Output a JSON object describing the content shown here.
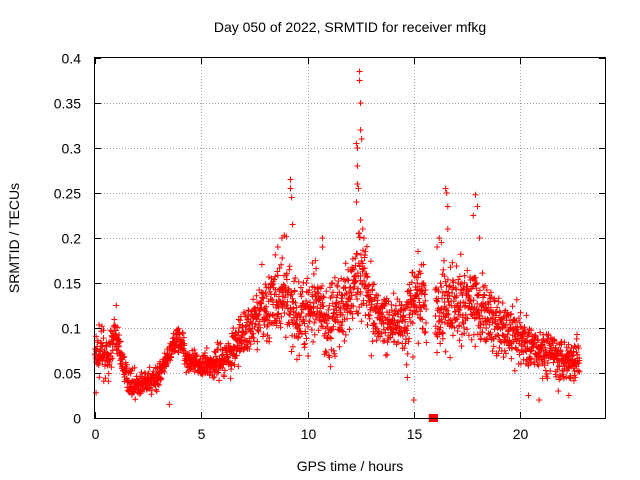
{
  "chart_data": {
    "type": "scatter",
    "title": "Day 050 of 2022, SRMTID for receiver mfkg",
    "xlabel": "GPS time / hours",
    "ylabel": "SRMTID / TECUs",
    "xlim": [
      0,
      24
    ],
    "ylim": [
      0,
      0.4
    ],
    "x_ticks": [
      0,
      5,
      10,
      15,
      20
    ],
    "x_tick_labels": [
      "0",
      "5",
      "10",
      "15",
      "20"
    ],
    "y_ticks": [
      0,
      0.05,
      0.1,
      0.15,
      0.2,
      0.25,
      0.3,
      0.35,
      0.4
    ],
    "y_tick_labels": [
      "0",
      "0.05",
      "0.1",
      "0.15",
      "0.2",
      "0.25",
      "0.3",
      "0.35",
      "0.4"
    ],
    "grid": true,
    "marker": "+",
    "series": [
      {
        "name": "SRMTID",
        "color": "#ff0000",
        "trend": [
          [
            0.0,
            0.068
          ],
          [
            0.3,
            0.075
          ],
          [
            0.6,
            0.062
          ],
          [
            0.8,
            0.085
          ],
          [
            1.0,
            0.092
          ],
          [
            1.2,
            0.07
          ],
          [
            1.5,
            0.045
          ],
          [
            1.8,
            0.038
          ],
          [
            2.1,
            0.035
          ],
          [
            2.4,
            0.038
          ],
          [
            2.7,
            0.042
          ],
          [
            3.0,
            0.048
          ],
          [
            3.3,
            0.058
          ],
          [
            3.6,
            0.075
          ],
          [
            3.9,
            0.09
          ],
          [
            4.1,
            0.085
          ],
          [
            4.3,
            0.068
          ],
          [
            4.6,
            0.06
          ],
          [
            5.0,
            0.058
          ],
          [
            5.5,
            0.06
          ],
          [
            6.0,
            0.065
          ],
          [
            6.5,
            0.075
          ],
          [
            7.0,
            0.092
          ],
          [
            7.5,
            0.11
          ],
          [
            8.0,
            0.125
          ],
          [
            8.5,
            0.128
          ],
          [
            9.0,
            0.135
          ],
          [
            9.5,
            0.11
          ],
          [
            10.0,
            0.12
          ],
          [
            10.5,
            0.118
          ],
          [
            11.0,
            0.105
          ],
          [
            11.5,
            0.118
          ],
          [
            12.0,
            0.14
          ],
          [
            12.3,
            0.16
          ],
          [
            12.6,
            0.17
          ],
          [
            12.9,
            0.13
          ],
          [
            13.3,
            0.115
          ],
          [
            13.7,
            0.108
          ],
          [
            14.2,
            0.11
          ],
          [
            14.7,
            0.1
          ],
          [
            15.0,
            0.125
          ],
          [
            15.3,
            0.14
          ],
          [
            15.5,
            0.12
          ],
          [
            15.8,
            0.11
          ],
          [
            16.2,
            0.125
          ],
          [
            16.6,
            0.13
          ],
          [
            17.0,
            0.125
          ],
          [
            17.5,
            0.13
          ],
          [
            18.0,
            0.12
          ],
          [
            18.5,
            0.115
          ],
          [
            19.0,
            0.1
          ],
          [
            19.5,
            0.095
          ],
          [
            20.0,
            0.09
          ],
          [
            20.5,
            0.078
          ],
          [
            21.0,
            0.075
          ],
          [
            21.5,
            0.072
          ],
          [
            22.0,
            0.068
          ],
          [
            22.5,
            0.065
          ],
          [
            22.8,
            0.07
          ]
        ],
        "spread": [
          [
            0.0,
            0.022
          ],
          [
            1.5,
            0.012
          ],
          [
            3.0,
            0.012
          ],
          [
            4.0,
            0.012
          ],
          [
            6.0,
            0.015
          ],
          [
            7.5,
            0.03
          ],
          [
            9.0,
            0.04
          ],
          [
            11.0,
            0.035
          ],
          [
            12.5,
            0.045
          ],
          [
            13.5,
            0.03
          ],
          [
            15.0,
            0.035
          ],
          [
            16.5,
            0.04
          ],
          [
            18.0,
            0.035
          ],
          [
            20.0,
            0.025
          ],
          [
            22.8,
            0.018
          ]
        ],
        "gaps": [
          [
            15.6,
            16.0
          ]
        ],
        "outliers": [
          [
            9.2,
            0.265
          ],
          [
            9.2,
            0.255
          ],
          [
            9.25,
            0.245
          ],
          [
            9.3,
            0.215
          ],
          [
            12.3,
            0.305
          ],
          [
            12.35,
            0.3
          ],
          [
            12.35,
            0.28
          ],
          [
            12.35,
            0.26
          ],
          [
            12.4,
            0.255
          ],
          [
            12.45,
            0.385
          ],
          [
            12.45,
            0.375
          ],
          [
            12.5,
            0.35
          ],
          [
            12.5,
            0.32
          ],
          [
            12.55,
            0.31
          ],
          [
            12.3,
            0.24
          ],
          [
            12.5,
            0.22
          ],
          [
            12.6,
            0.21
          ],
          [
            16.5,
            0.255
          ],
          [
            16.55,
            0.25
          ],
          [
            16.6,
            0.235
          ],
          [
            16.6,
            0.21
          ],
          [
            17.9,
            0.248
          ],
          [
            18.0,
            0.235
          ],
          [
            17.8,
            0.225
          ],
          [
            18.1,
            0.2
          ],
          [
            16.2,
            0.2
          ],
          [
            16.3,
            0.195
          ],
          [
            16.1,
            0.19
          ],
          [
            15.2,
            0.185
          ],
          [
            10.7,
            0.19
          ],
          [
            10.7,
            0.2
          ],
          [
            8.6,
            0.19
          ],
          [
            8.8,
            0.2
          ],
          [
            0.05,
            0.028
          ],
          [
            1.0,
            0.125
          ],
          [
            3.5,
            0.015
          ],
          [
            15.0,
            0.02
          ],
          [
            14.7,
            0.045
          ],
          [
            20.4,
            0.025
          ],
          [
            20.9,
            0.02
          ],
          [
            21.8,
            0.03
          ],
          [
            22.3,
            0.025
          ]
        ],
        "zero_markers": [
          15.85,
          16.0
        ],
        "point_count": 2300
      }
    ]
  }
}
